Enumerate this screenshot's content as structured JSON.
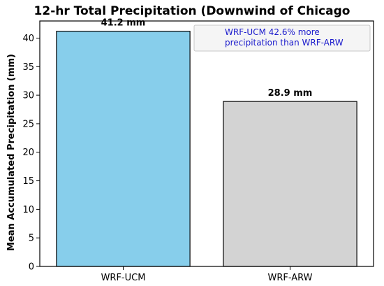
{
  "chart_data": {
    "type": "bar",
    "title": "12-hr Total Precipitation (Downwind of Chicago",
    "xlabel": "",
    "ylabel": "Mean Accumulated Precipitation (mm)",
    "categories": [
      "WRF-UCM",
      "WRF-ARW"
    ],
    "values": [
      41.2,
      28.9
    ],
    "value_labels": [
      "41.2 mm",
      "28.9 mm"
    ],
    "colors": [
      "#87ceeb",
      "#d3d3d3"
    ],
    "ylim": [
      0,
      43
    ],
    "yticks": [
      "0",
      "5",
      "10",
      "15",
      "20",
      "25",
      "30",
      "35",
      "40"
    ],
    "grid": false,
    "legend": "none",
    "annotation": {
      "lines": [
        "WRF-UCM 42.6% more",
        "precipitation than WRF-ARW"
      ],
      "position": "top-right",
      "text_color": "#1a1acc"
    }
  }
}
